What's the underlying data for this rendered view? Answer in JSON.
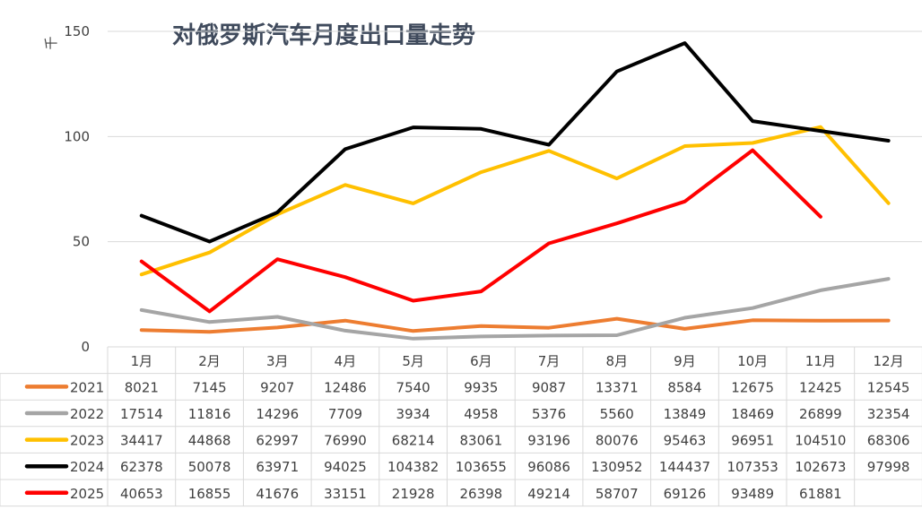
{
  "chart_data": {
    "type": "line",
    "title": "对俄罗斯汽车月度出口量走势",
    "ylabel": "千",
    "ylim": [
      0,
      150
    ],
    "yticks": [
      0,
      50,
      100,
      150
    ],
    "categories": [
      "1月",
      "2月",
      "3月",
      "4月",
      "5月",
      "6月",
      "7月",
      "8月",
      "9月",
      "10月",
      "11月",
      "12月"
    ],
    "grid": true,
    "legend": "table-left",
    "series": [
      {
        "name": "2021",
        "color": "#ed7d31",
        "values": [
          8021,
          7145,
          9207,
          12486,
          7540,
          9935,
          9087,
          13371,
          8584,
          12675,
          12425,
          12545
        ]
      },
      {
        "name": "2022",
        "color": "#a5a5a5",
        "values": [
          17514,
          11816,
          14296,
          7709,
          3934,
          4958,
          5376,
          5560,
          13849,
          18469,
          26899,
          32354
        ]
      },
      {
        "name": "2023",
        "color": "#ffc000",
        "values": [
          34417,
          44868,
          62997,
          76990,
          68214,
          83061,
          93196,
          80076,
          95463,
          96951,
          104510,
          68306
        ]
      },
      {
        "name": "2024",
        "color": "#000000",
        "values": [
          62378,
          50078,
          63971,
          94025,
          104382,
          103655,
          96086,
          130952,
          144437,
          107353,
          102673,
          97998
        ]
      },
      {
        "name": "2025",
        "color": "#ff0000",
        "values": [
          40653,
          16855,
          41676,
          33151,
          21928,
          26398,
          49214,
          58707,
          69126,
          93489,
          61881,
          null
        ]
      }
    ]
  }
}
